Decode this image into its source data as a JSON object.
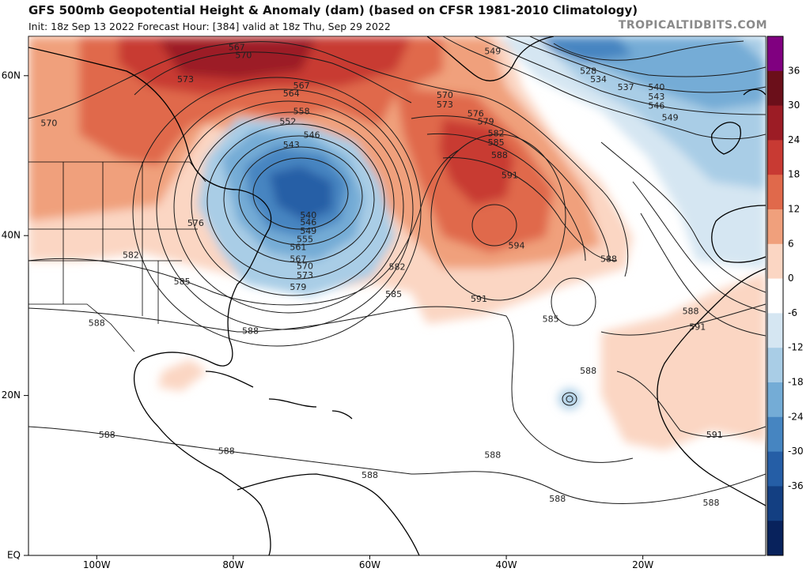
{
  "header": {
    "title": "GFS 500mb Geopotential Height & Anomaly (dam) (based on CFSR 1981-2010 Climatology)",
    "subtitle": "Init: 18z Sep 13 2022   Forecast Hour: [384]   valid at 18z Thu, Sep 29 2022",
    "credit": "TROPICALTIDBITS.COM"
  },
  "axes": {
    "lat_labels": [
      "60N",
      "40N",
      "20N",
      "EQ"
    ],
    "lon_labels": [
      "100W",
      "80W",
      "60W",
      "40W",
      "20W"
    ]
  },
  "colorbar": {
    "ticks": [
      "36",
      "30",
      "24",
      "18",
      "12",
      "6",
      "0",
      "-6",
      "-12",
      "-18",
      "-24",
      "-30",
      "-36"
    ],
    "colors": [
      "#800080",
      "#6b0f1a",
      "#9c1c25",
      "#c83a33",
      "#e0694b",
      "#f0a07c",
      "#fbd6c3",
      "#ffffff",
      "#d5e6f2",
      "#a9cde6",
      "#74acd6",
      "#4685c1",
      "#255ea6",
      "#133f82",
      "#08225c"
    ]
  },
  "contour_labels": [
    {
      "text": "567",
      "lon": -79.5,
      "lat": 63.5
    },
    {
      "text": "570",
      "lon": -78.5,
      "lat": 62.5
    },
    {
      "text": "573",
      "lon": -87,
      "lat": 59.5
    },
    {
      "text": "570",
      "lon": -107,
      "lat": 54.0
    },
    {
      "text": "567",
      "lon": -70,
      "lat": 58.7
    },
    {
      "text": "564",
      "lon": -71.5,
      "lat": 57.7
    },
    {
      "text": "558",
      "lon": -70,
      "lat": 55.5
    },
    {
      "text": "552",
      "lon": -72,
      "lat": 54.2
    },
    {
      "text": "546",
      "lon": -68.5,
      "lat": 52.5
    },
    {
      "text": "543",
      "lon": -71.5,
      "lat": 51.3
    },
    {
      "text": "540",
      "lon": -69,
      "lat": 42.5
    },
    {
      "text": "546",
      "lon": -69,
      "lat": 41.6
    },
    {
      "text": "549",
      "lon": -69,
      "lat": 40.5
    },
    {
      "text": "555",
      "lon": -69.5,
      "lat": 39.5
    },
    {
      "text": "561",
      "lon": -70.5,
      "lat": 38.5
    },
    {
      "text": "567",
      "lon": -70.5,
      "lat": 37.0
    },
    {
      "text": "570",
      "lon": -69.5,
      "lat": 36.1
    },
    {
      "text": "573",
      "lon": -69.5,
      "lat": 35.0
    },
    {
      "text": "579",
      "lon": -70.5,
      "lat": 33.5
    },
    {
      "text": "582",
      "lon": -56,
      "lat": 36.0
    },
    {
      "text": "585",
      "lon": -56.5,
      "lat": 32.6
    },
    {
      "text": "576",
      "lon": -85.5,
      "lat": 41.5
    },
    {
      "text": "582",
      "lon": -95,
      "lat": 37.5
    },
    {
      "text": "585",
      "lon": -87.5,
      "lat": 34.2
    },
    {
      "text": "588",
      "lon": -100,
      "lat": 29.0
    },
    {
      "text": "588",
      "lon": -77.5,
      "lat": 28.0
    },
    {
      "text": "570",
      "lon": -49,
      "lat": 57.5
    },
    {
      "text": "573",
      "lon": -49,
      "lat": 56.3
    },
    {
      "text": "576",
      "lon": -44.5,
      "lat": 55.2
    },
    {
      "text": "579",
      "lon": -43,
      "lat": 54.2
    },
    {
      "text": "582",
      "lon": -41.5,
      "lat": 52.7
    },
    {
      "text": "585",
      "lon": -41.5,
      "lat": 51.6
    },
    {
      "text": "588",
      "lon": -41,
      "lat": 50.0
    },
    {
      "text": "591",
      "lon": -39.5,
      "lat": 47.5
    },
    {
      "text": "594",
      "lon": -38.5,
      "lat": 38.7
    },
    {
      "text": "588",
      "lon": -25,
      "lat": 37.0
    },
    {
      "text": "591",
      "lon": -44,
      "lat": 32.0
    },
    {
      "text": "585",
      "lon": -33.5,
      "lat": 29.5
    },
    {
      "text": "588",
      "lon": -13,
      "lat": 30.5
    },
    {
      "text": "591",
      "lon": -12,
      "lat": 28.5
    },
    {
      "text": "588",
      "lon": -28,
      "lat": 23.0
    },
    {
      "text": "549",
      "lon": -42,
      "lat": 63.0
    },
    {
      "text": "528",
      "lon": -28,
      "lat": 60.5
    },
    {
      "text": "534",
      "lon": -26.5,
      "lat": 59.5
    },
    {
      "text": "537",
      "lon": -22.5,
      "lat": 58.5
    },
    {
      "text": "540",
      "lon": -18,
      "lat": 58.5
    },
    {
      "text": "543",
      "lon": -18,
      "lat": 57.3
    },
    {
      "text": "546",
      "lon": -18,
      "lat": 56.2
    },
    {
      "text": "549",
      "lon": -16,
      "lat": 54.7
    },
    {
      "text": "591",
      "lon": -9.5,
      "lat": 15.0
    },
    {
      "text": "588",
      "lon": -98.5,
      "lat": 15.0
    },
    {
      "text": "588",
      "lon": -81,
      "lat": 13.0
    },
    {
      "text": "588",
      "lon": -60,
      "lat": 10.0
    },
    {
      "text": "588",
      "lon": -42,
      "lat": 12.5
    },
    {
      "text": "588",
      "lon": -32.5,
      "lat": 7.0
    },
    {
      "text": "588",
      "lon": -10,
      "lat": 6.5
    }
  ]
}
